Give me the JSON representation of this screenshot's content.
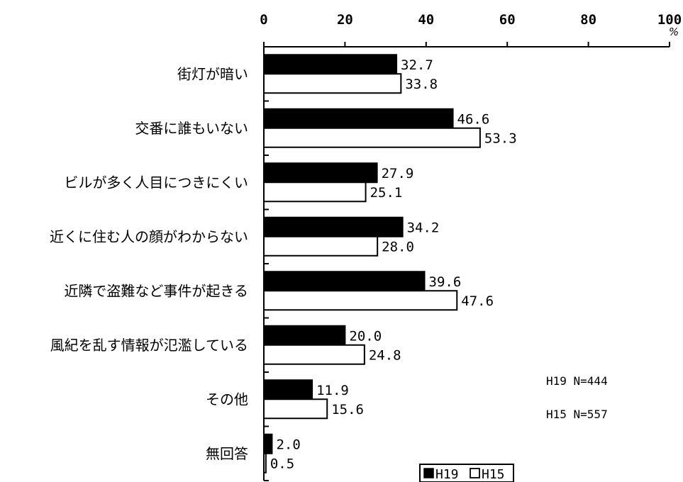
{
  "chart_data": {
    "type": "bar",
    "orientation": "horizontal",
    "categories": [
      "街灯が暗い",
      "交番に誰もいない",
      "ビルが多く人目につきにくい",
      "近くに住む人の顔がわからない",
      "近隣で盗難など事件が起きる",
      "風紀を乱す情報が氾濫している",
      "その他",
      "無回答"
    ],
    "series": [
      {
        "name": "H19",
        "color": "#000000",
        "values": [
          32.7,
          46.6,
          27.9,
          34.2,
          39.6,
          20.0,
          11.9,
          2.0
        ],
        "labels": [
          "32.7",
          "46.6",
          "27.9",
          "34.2",
          "39.6",
          "20.0",
          "11.9",
          "2.0"
        ]
      },
      {
        "name": "H15",
        "color": "#ffffff",
        "values": [
          33.8,
          53.3,
          25.1,
          28.0,
          47.6,
          24.8,
          15.6,
          0.5
        ],
        "labels": [
          "33.8",
          "53.3",
          "25.1",
          "28.0",
          "47.6",
          "24.8",
          "15.6",
          "0.5"
        ]
      }
    ],
    "xlim": [
      0,
      100
    ],
    "xticks": [
      "0",
      "20",
      "40",
      "60",
      "80",
      "100"
    ],
    "unit": "%",
    "axis_position": "top",
    "legend_position": "bottom",
    "grid": false,
    "annotations": [
      "H19 N=444",
      "H15 N=557"
    ]
  }
}
